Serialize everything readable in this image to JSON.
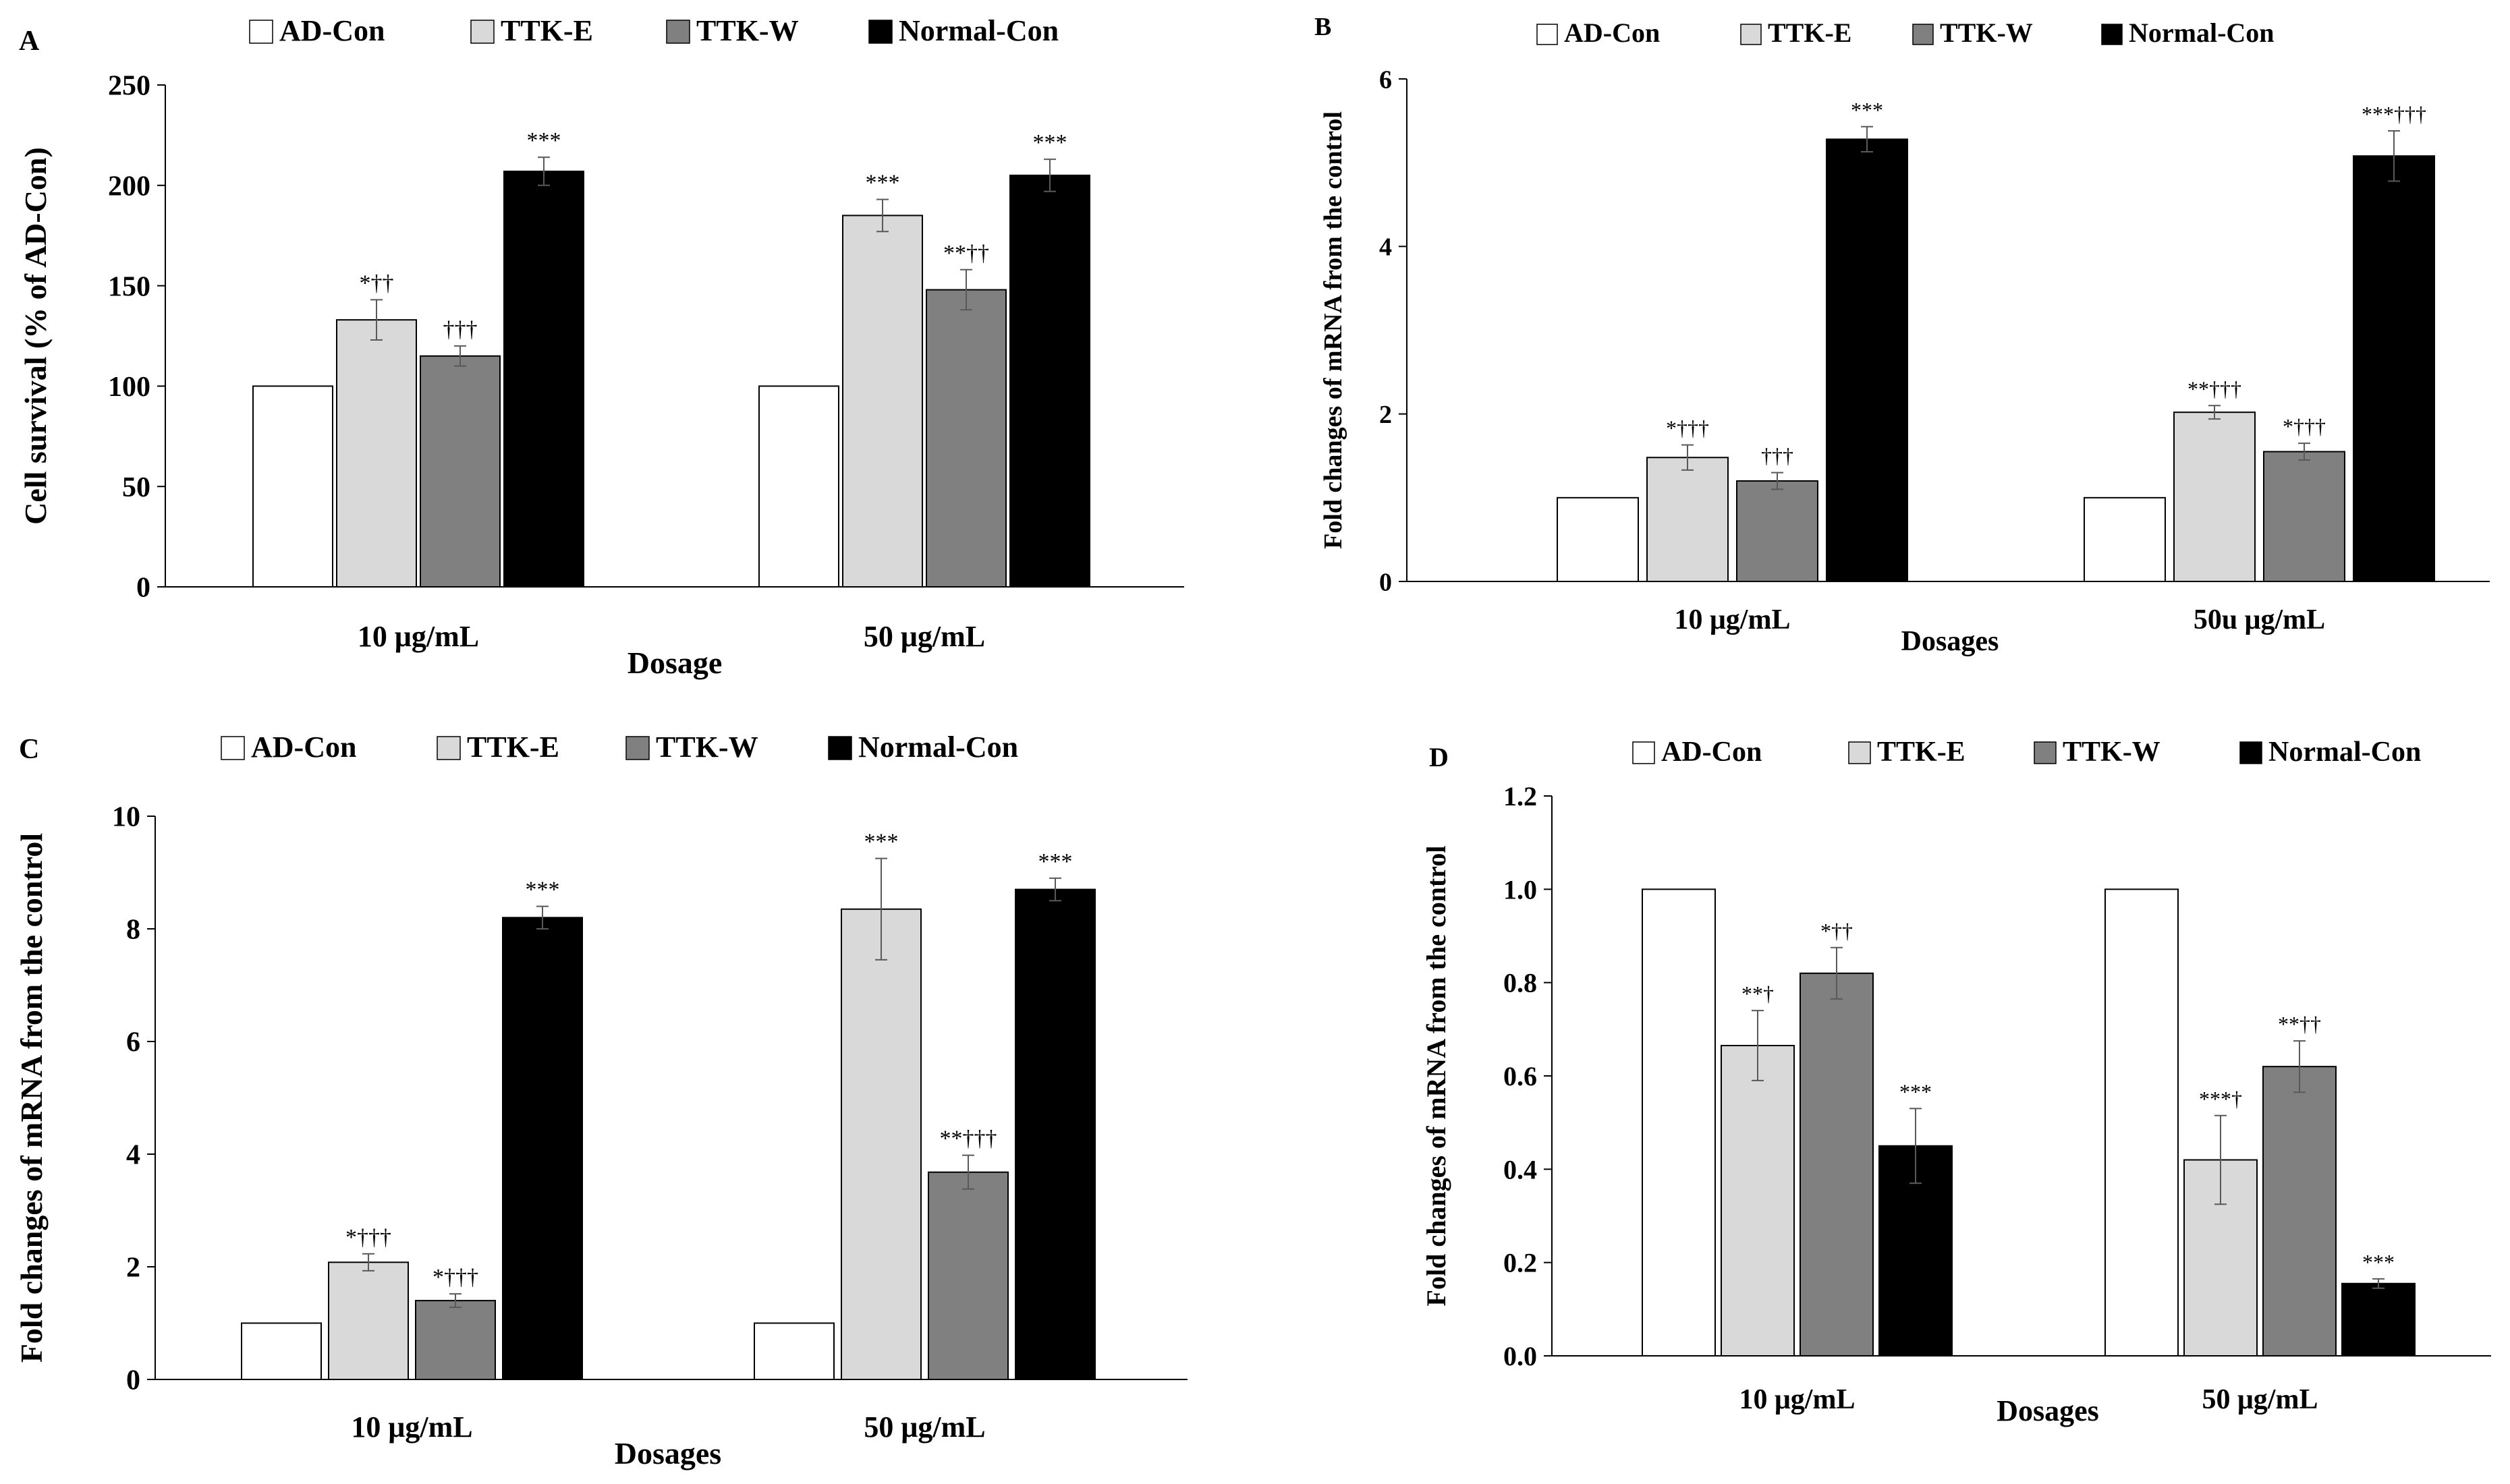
{
  "colors": {
    "AD-Con": "#ffffff",
    "TTK-E": "#d9d9d9",
    "TTK-W": "#808080",
    "Normal-Con": "#000000",
    "error_bar": "#595959",
    "axis": "#000000"
  },
  "chart_data": [
    {
      "panel": "A",
      "type": "bar",
      "categories": [
        "10 μg/mL",
        "50 μg/mL"
      ],
      "xlabel": "Dosage",
      "ylabel": "Cell survival (% of AD-Con)",
      "ylim": [
        0,
        250
      ],
      "yticks": [
        0,
        50,
        100,
        150,
        200,
        250
      ],
      "tick_decimals": 0,
      "legend_position": "top",
      "grid": false,
      "series": [
        {
          "name": "AD-Con",
          "values": [
            100,
            100
          ],
          "errors": [
            0,
            0
          ],
          "annotations": [
            "",
            ""
          ]
        },
        {
          "name": "TTK-E",
          "values": [
            133,
            185
          ],
          "errors": [
            10,
            8
          ],
          "annotations": [
            "*††",
            "***"
          ]
        },
        {
          "name": "TTK-W",
          "values": [
            115,
            148
          ],
          "errors": [
            5,
            10
          ],
          "annotations": [
            "†††",
            "**††"
          ]
        },
        {
          "name": "Normal-Con",
          "values": [
            207,
            205
          ],
          "errors": [
            7,
            8
          ],
          "annotations": [
            "***",
            "***"
          ]
        }
      ]
    },
    {
      "panel": "B",
      "type": "bar",
      "categories": [
        "10 μg/mL",
        "50u μg/mL"
      ],
      "xlabel": "Dosages",
      "ylabel": "Fold changes of mRNA from the control",
      "ylim": [
        0,
        6
      ],
      "yticks": [
        0,
        2,
        4,
        6
      ],
      "tick_decimals": 0,
      "legend_position": "top",
      "grid": false,
      "series": [
        {
          "name": "AD-Con",
          "values": [
            1.0,
            1.0
          ],
          "errors": [
            0,
            0
          ],
          "annotations": [
            "",
            ""
          ]
        },
        {
          "name": "TTK-E",
          "values": [
            1.48,
            2.02
          ],
          "errors": [
            0.15,
            0.08
          ],
          "annotations": [
            "*†††",
            "**†††"
          ]
        },
        {
          "name": "TTK-W",
          "values": [
            1.2,
            1.55
          ],
          "errors": [
            0.1,
            0.1
          ],
          "annotations": [
            "†††",
            "*†††"
          ]
        },
        {
          "name": "Normal-Con",
          "values": [
            5.28,
            5.08
          ],
          "errors": [
            0.15,
            0.3
          ],
          "annotations": [
            "***",
            "***†††"
          ]
        }
      ]
    },
    {
      "panel": "C",
      "type": "bar",
      "categories": [
        "10 μg/mL",
        "50 μg/mL"
      ],
      "xlabel": "Dosages",
      "ylabel": "Fold changes of mRNA from the control",
      "ylim": [
        0,
        10
      ],
      "yticks": [
        0,
        2,
        4,
        6,
        8,
        10
      ],
      "tick_decimals": 0,
      "legend_position": "top",
      "grid": false,
      "series": [
        {
          "name": "AD-Con",
          "values": [
            1.0,
            1.0
          ],
          "errors": [
            0,
            0
          ],
          "annotations": [
            "",
            ""
          ]
        },
        {
          "name": "TTK-E",
          "values": [
            2.08,
            8.35
          ],
          "errors": [
            0.15,
            0.9
          ],
          "annotations": [
            "*†††",
            "***"
          ]
        },
        {
          "name": "TTK-W",
          "values": [
            1.4,
            3.68
          ],
          "errors": [
            0.12,
            0.3
          ],
          "annotations": [
            "*†††",
            "**†††"
          ]
        },
        {
          "name": "Normal-Con",
          "values": [
            8.2,
            8.7
          ],
          "errors": [
            0.2,
            0.2
          ],
          "annotations": [
            "***",
            "***"
          ]
        }
      ]
    },
    {
      "panel": "D",
      "type": "bar",
      "categories": [
        "10 μg/mL",
        "50 μg/mL"
      ],
      "xlabel": "Dosages",
      "ylabel": "Fold changes of mRNA from the control",
      "ylim": [
        0,
        1.2
      ],
      "yticks": [
        0,
        0.2,
        0.4,
        0.6,
        0.8,
        1.0,
        1.2
      ],
      "tick_decimals": 1,
      "legend_position": "top",
      "grid": false,
      "series": [
        {
          "name": "AD-Con",
          "values": [
            1.0,
            1.0
          ],
          "errors": [
            0,
            0
          ],
          "annotations": [
            "",
            ""
          ]
        },
        {
          "name": "TTK-E",
          "values": [
            0.665,
            0.42
          ],
          "errors": [
            0.075,
            0.095
          ],
          "annotations": [
            "**†",
            "***†"
          ]
        },
        {
          "name": "TTK-W",
          "values": [
            0.82,
            0.62
          ],
          "errors": [
            0.055,
            0.055
          ],
          "annotations": [
            "*††",
            "**††"
          ]
        },
        {
          "name": "Normal-Con",
          "values": [
            0.45,
            0.155
          ],
          "errors": [
            0.08,
            0.01
          ],
          "annotations": [
            "***",
            "***"
          ]
        }
      ]
    }
  ]
}
